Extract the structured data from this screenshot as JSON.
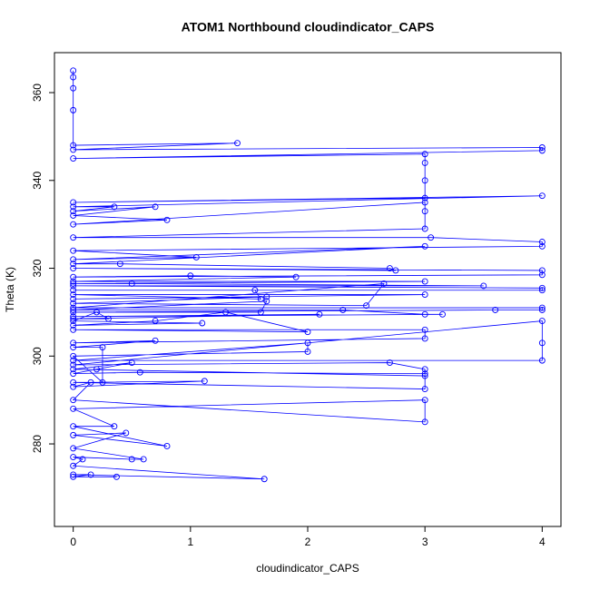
{
  "chart_data": {
    "type": "line",
    "title": "ATOM1 Northbound cloudindicator_CAPS",
    "x_label": "cloudindicator_CAPS",
    "y_label": "Theta (K)",
    "xlim": [
      -0.16,
      4.16
    ],
    "ylim": [
      261.2,
      369.1
    ],
    "xticks": [
      0,
      1,
      2,
      3,
      4
    ],
    "yticks": [
      280,
      300,
      320,
      340,
      360
    ],
    "series": [
      {
        "name": "Theta",
        "color": "#0000ff",
        "x": [
          0,
          0,
          0,
          0,
          0,
          1.4,
          0,
          4,
          4,
          0,
          3,
          3,
          3,
          3,
          0,
          4,
          0,
          0.35,
          0,
          0.7,
          0,
          0.8,
          0,
          3,
          3,
          3,
          0,
          3.05,
          4,
          4,
          0,
          1.05,
          0,
          3,
          0,
          0.4,
          2.7,
          2.75,
          0,
          4,
          4,
          0,
          1,
          1.9,
          0,
          3,
          0,
          0.5,
          3.5,
          0,
          4,
          4,
          0,
          1.55,
          1.6,
          0,
          3,
          0,
          1.65,
          0,
          2.5,
          2.65,
          0,
          4,
          4,
          3.6,
          0,
          1.6,
          1.65,
          0,
          2.3,
          3,
          3.15,
          0,
          2.1,
          0,
          0.3,
          0.2,
          0,
          1.1,
          0,
          0.7,
          1.3,
          2,
          0,
          3,
          3,
          0,
          0.7,
          0,
          0.25,
          0.25,
          0,
          2,
          2,
          0,
          4,
          4,
          4,
          0,
          2.7,
          3,
          3,
          0,
          0.5,
          0.2,
          0,
          0.57,
          3,
          3,
          0,
          1.12,
          0,
          0.15,
          0,
          3,
          3,
          0,
          0.35,
          0,
          0.8,
          0,
          0.45,
          0,
          0.6,
          0.5,
          0,
          0.08,
          0,
          1.63,
          0,
          0.15,
          0,
          0.37
        ],
        "values": [
          365,
          363.5,
          361,
          356,
          348,
          348.5,
          347,
          347.5,
          346.8,
          345,
          346,
          344,
          340,
          336,
          335,
          336.5,
          334,
          334,
          333,
          334,
          332,
          331,
          330,
          335,
          333,
          329,
          327,
          327,
          326,
          325,
          324,
          322.5,
          322,
          325,
          321,
          321,
          320,
          319.5,
          320,
          319.5,
          318.5,
          318,
          318.3,
          318,
          317,
          317,
          316.5,
          316.5,
          316,
          316,
          315.5,
          315,
          315,
          315,
          313,
          314,
          314,
          313,
          313.5,
          312,
          311.5,
          316.5,
          311,
          311,
          310.5,
          310.5,
          310,
          310,
          312.5,
          310.5,
          310.5,
          309.5,
          309.5,
          309,
          309.5,
          308.5,
          308.5,
          310,
          308,
          307.5,
          307,
          308,
          310,
          305.5,
          306,
          306,
          304,
          303,
          303.5,
          302,
          302,
          294,
          300,
          301,
          303,
          299,
          299,
          303,
          308,
          298,
          298.5,
          297,
          295.5,
          297,
          298.5,
          297,
          296,
          296.3,
          296,
          292.5,
          294,
          294.3,
          293,
          294,
          290,
          285,
          290,
          288,
          284,
          284,
          279.5,
          282,
          282.5,
          279,
          276.5,
          276.5,
          277,
          276.5,
          275,
          272,
          273,
          273,
          272.5,
          272.5
        ]
      }
    ]
  }
}
